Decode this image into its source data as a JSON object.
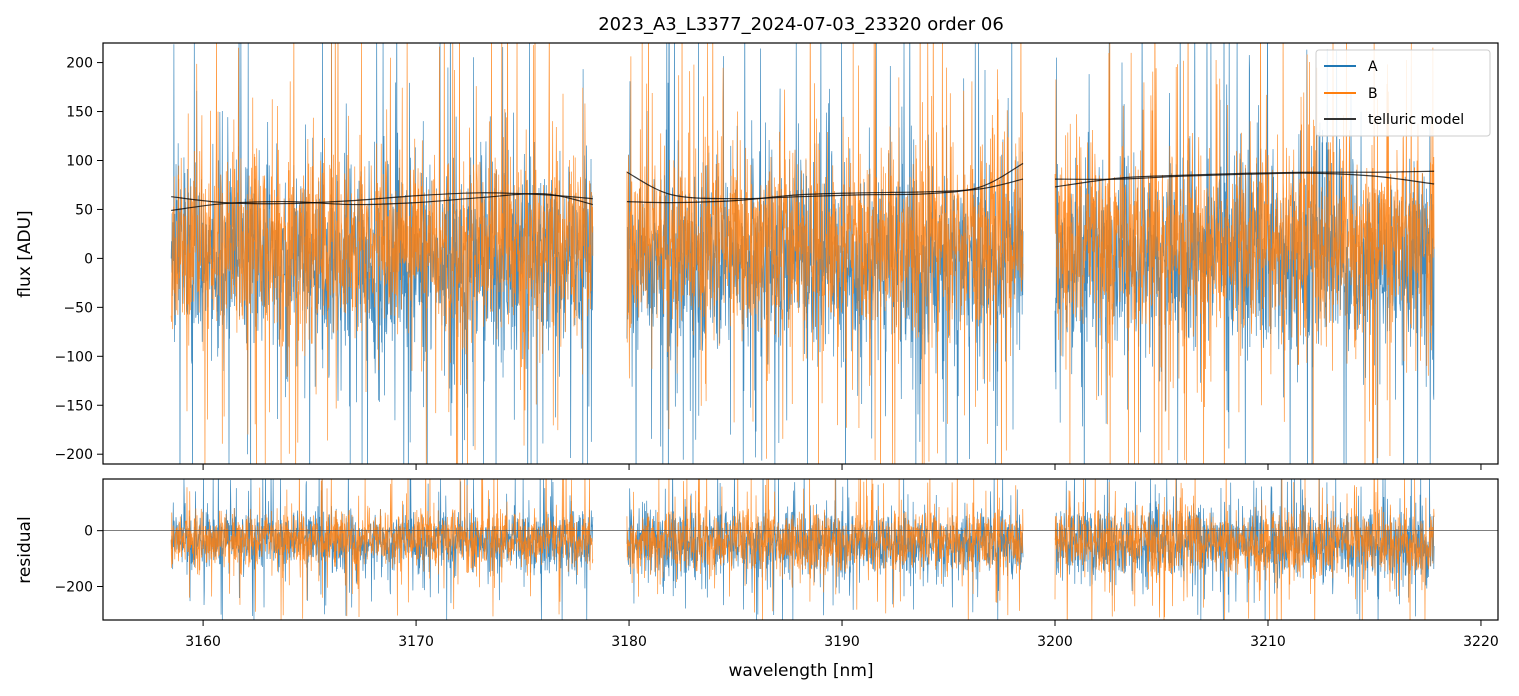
{
  "figure": {
    "title": "2023_A3_L3377_2024-07-03_23320  order 06"
  },
  "colors": {
    "A": "#1f77b4",
    "B": "#ff7f0e",
    "telluric": "#000000",
    "zero_line": "#555555"
  },
  "chart_data": [
    {
      "type": "line",
      "panel": "flux",
      "title": "2023_A3_L3377_2024-07-03_23320  order 06",
      "xlabel": "",
      "ylabel": "flux [ADU]",
      "xlim": [
        3155.3,
        3220.8
      ],
      "ylim": [
        -210,
        220
      ],
      "xticks": [
        3160,
        3170,
        3180,
        3190,
        3200,
        3210,
        3220
      ],
      "yticks": [
        -200,
        -150,
        -100,
        -50,
        0,
        50,
        100,
        150,
        200
      ],
      "ytick_labels": [
        "−200",
        "−150",
        "−100",
        "−50",
        "0",
        "50",
        "100",
        "150",
        "200"
      ],
      "grid": false,
      "legend": {
        "placement": "upper right",
        "entries": [
          "A",
          "B",
          "telluric model"
        ]
      },
      "segments": [
        {
          "x_range": [
            3158.5,
            3178.3
          ],
          "A": {
            "mean": 0,
            "spread_typ": 55,
            "spread_max": 210
          },
          "B": {
            "mean": 15,
            "spread_typ": 55,
            "spread_max": 210
          }
        },
        {
          "x_range": [
            3179.9,
            3198.5
          ],
          "A": {
            "mean": 0,
            "spread_typ": 55,
            "spread_max": 210
          },
          "B": {
            "mean": 15,
            "spread_typ": 55,
            "spread_max": 210
          }
        },
        {
          "x_range": [
            3200.0,
            3217.8
          ],
          "A": {
            "mean": 0,
            "spread_typ": 55,
            "spread_max": 210
          },
          "B": {
            "mean": 15,
            "spread_typ": 55,
            "spread_max": 210
          }
        }
      ],
      "series": [
        {
          "name": "A",
          "kind": "noisy spectrum"
        },
        {
          "name": "B",
          "kind": "noisy spectrum"
        },
        {
          "name": "telluric model",
          "curves": [
            {
              "x": [
                3158.5,
                3161,
                3164,
                3167,
                3170,
                3173,
                3176,
                3178.3
              ],
              "y": [
                63,
                57,
                56,
                59,
                64,
                67,
                65,
                61
              ]
            },
            {
              "x": [
                3158.5,
                3161,
                3164,
                3167,
                3170,
                3173,
                3176,
                3178.3
              ],
              "y": [
                49,
                56,
                58,
                55,
                57,
                62,
                66,
                55
              ]
            },
            {
              "x": [
                3179.9,
                3182,
                3185,
                3188,
                3191,
                3194,
                3196.5,
                3198.5
              ],
              "y": [
                88,
                65,
                61,
                63,
                65,
                66,
                73,
                97
              ]
            },
            {
              "x": [
                3179.9,
                3182,
                3185,
                3188,
                3191,
                3194,
                3196.5,
                3198.5
              ],
              "y": [
                58,
                57,
                59,
                65,
                67,
                68,
                71,
                81
              ]
            },
            {
              "x": [
                3200.0,
                3203,
                3206,
                3209,
                3212,
                3215,
                3217.8
              ],
              "y": [
                73,
                82,
                85,
                87,
                88,
                88,
                89
              ]
            },
            {
              "x": [
                3200.0,
                3203,
                3206,
                3209,
                3212,
                3215,
                3217.8
              ],
              "y": [
                81,
                81,
                84,
                86,
                87,
                84,
                76
              ]
            }
          ]
        }
      ]
    },
    {
      "type": "line",
      "panel": "residual",
      "xlabel": "wavelength [nm]",
      "ylabel": "residual",
      "xlim": [
        3155.3,
        3220.8
      ],
      "ylim": [
        -320,
        185
      ],
      "xticks": [
        3160,
        3170,
        3180,
        3190,
        3200,
        3210,
        3220
      ],
      "xtick_labels": [
        "3160",
        "3170",
        "3180",
        "3190",
        "3200",
        "3210",
        "3220"
      ],
      "yticks": [
        -200,
        0
      ],
      "ytick_labels": [
        "−200",
        "0"
      ],
      "grid": false,
      "reference_line": 0,
      "segments": [
        {
          "x_range": [
            3158.5,
            3178.3
          ],
          "A": {
            "mean": -35,
            "spread_typ": 70,
            "spread_max": 250
          },
          "B": {
            "mean": -30,
            "spread_typ": 65,
            "spread_max": 250
          }
        },
        {
          "x_range": [
            3179.9,
            3198.5
          ],
          "A": {
            "mean": -45,
            "spread_typ": 75,
            "spread_max": 250
          },
          "B": {
            "mean": -40,
            "spread_typ": 70,
            "spread_max": 250
          }
        },
        {
          "x_range": [
            3200.0,
            3217.8
          ],
          "A": {
            "mean": -50,
            "spread_typ": 80,
            "spread_max": 270
          },
          "B": {
            "mean": -45,
            "spread_typ": 75,
            "spread_max": 270
          }
        }
      ],
      "series": [
        {
          "name": "A",
          "kind": "noisy residual"
        },
        {
          "name": "B",
          "kind": "noisy residual"
        }
      ]
    }
  ]
}
